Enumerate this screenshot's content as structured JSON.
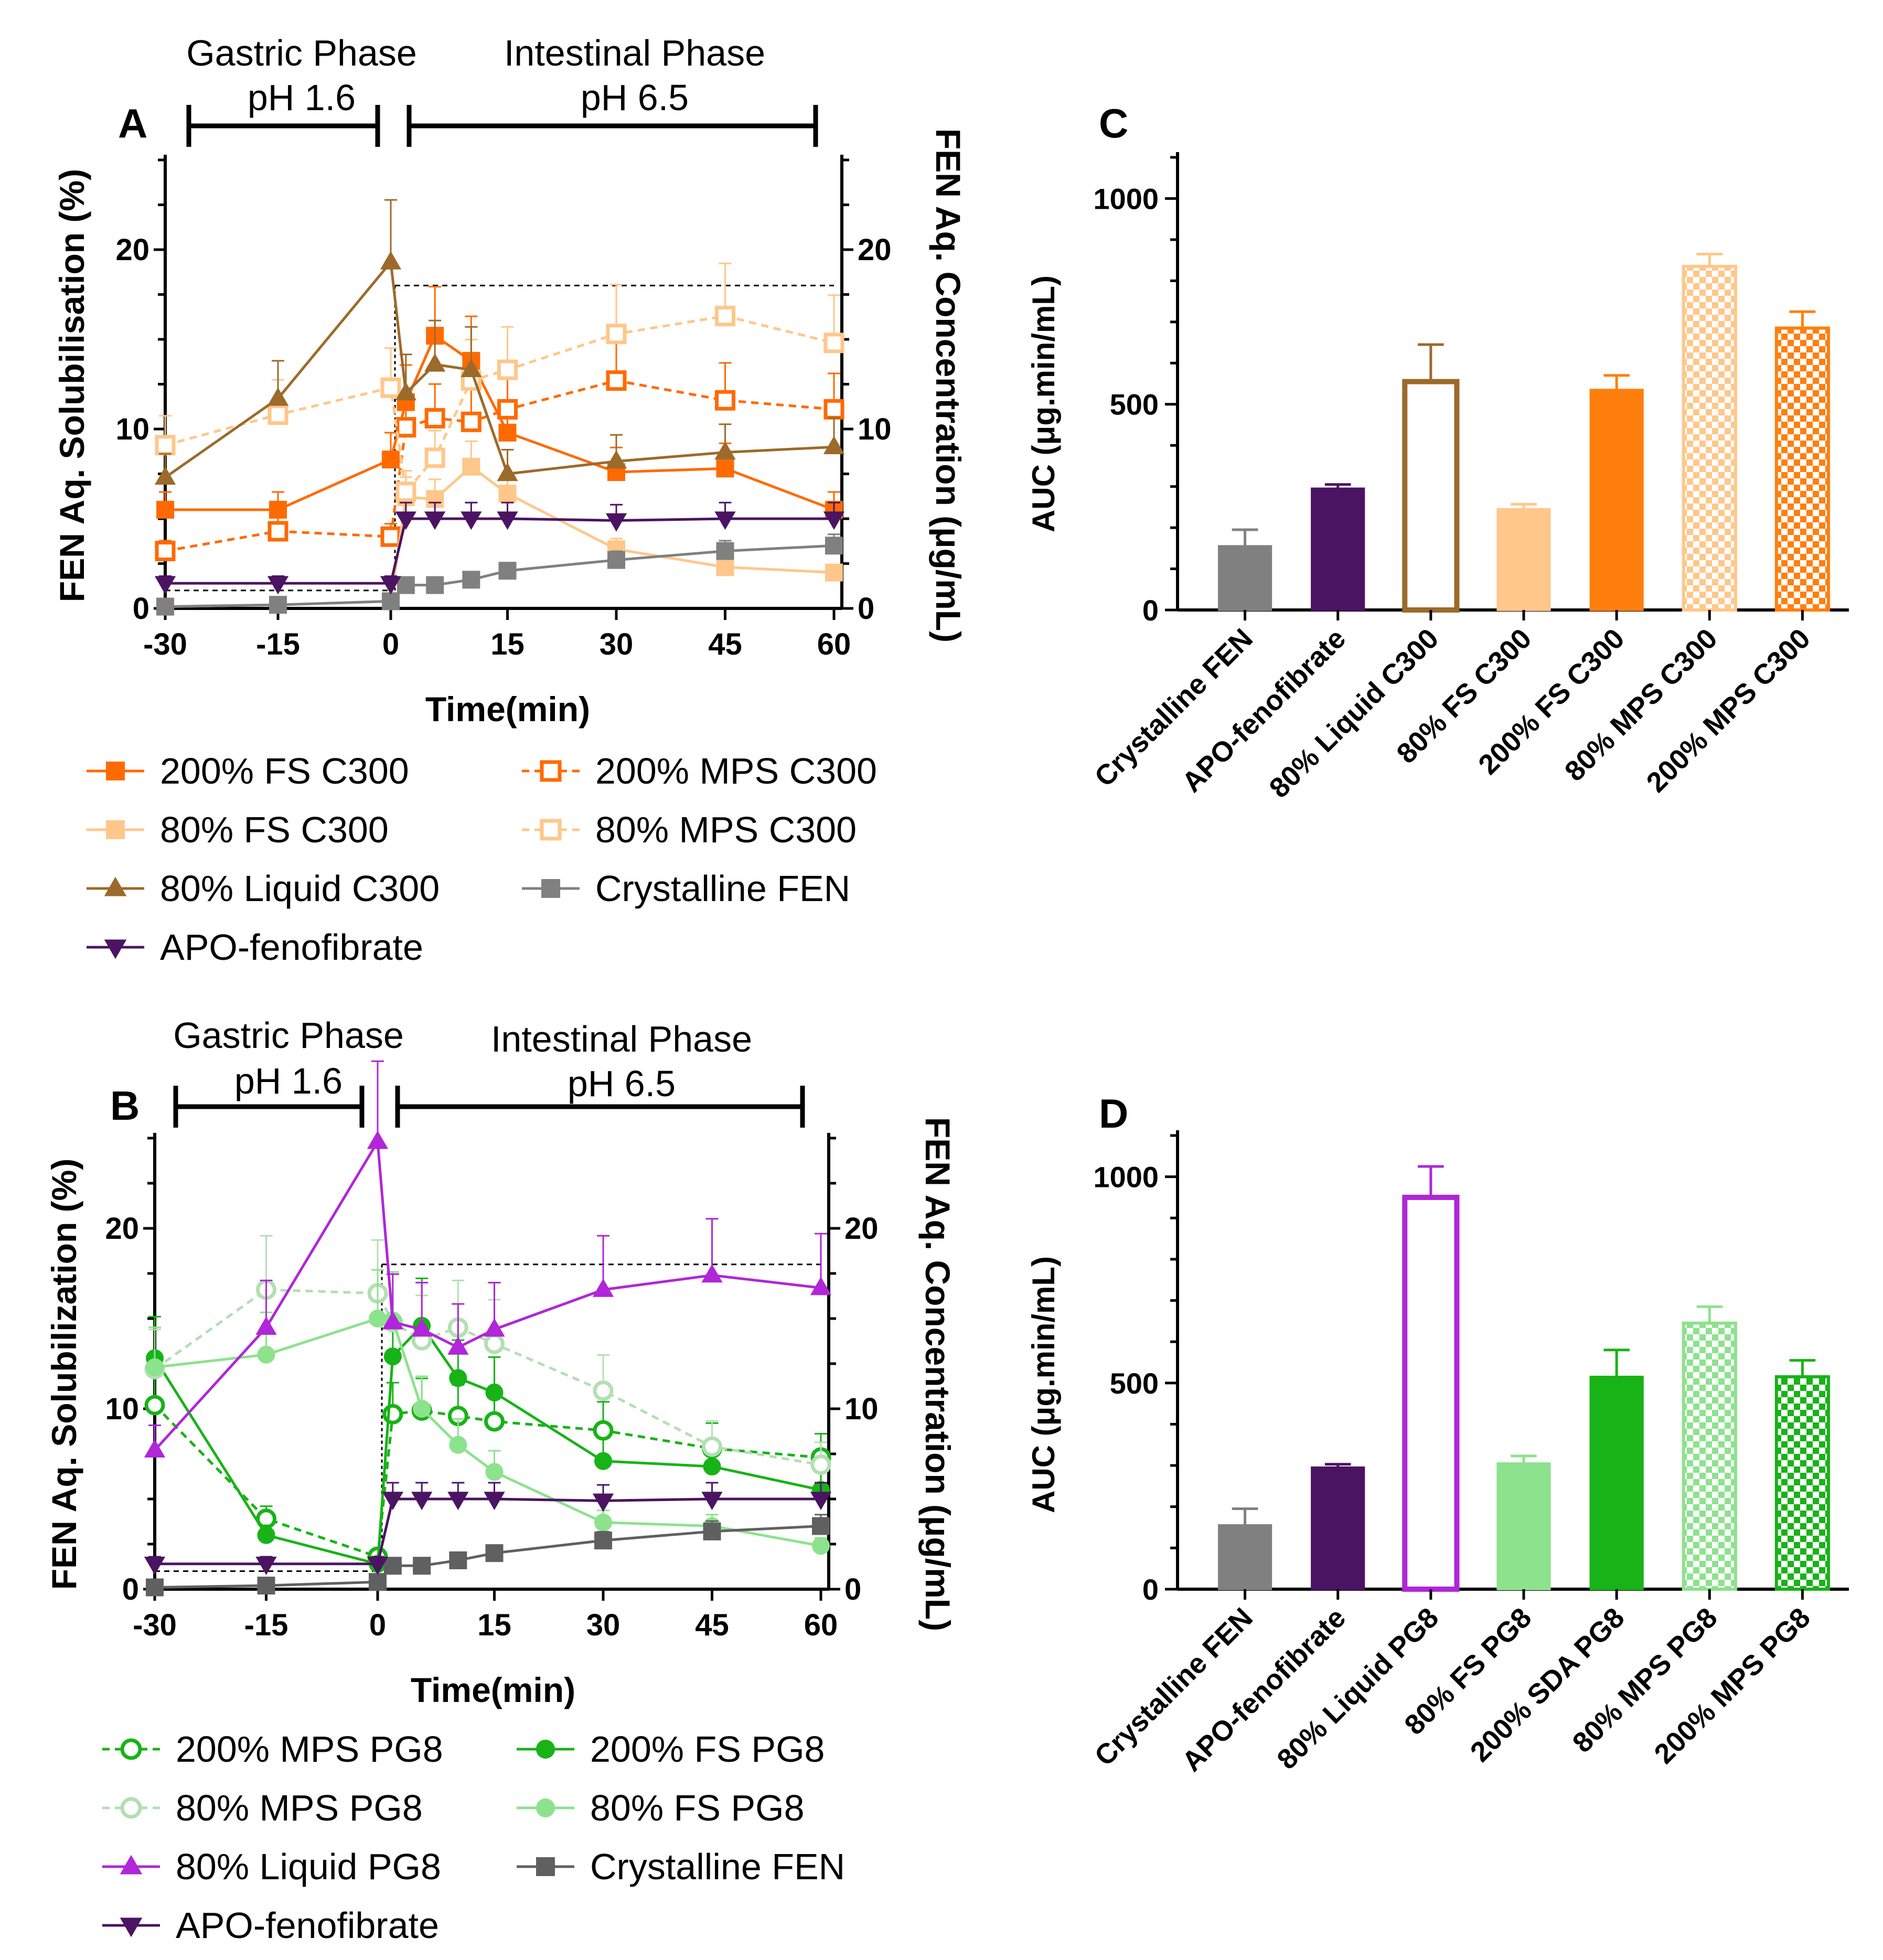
{
  "chart_data": [
    {
      "panel": "A",
      "type": "line",
      "xlabel": "Time(min)",
      "ylabel": "FEN Aq. Solubilisation (%)",
      "y2label": "FEN Aq. Concentration (μg/mL)",
      "xticks": [
        -30,
        -15,
        0,
        15,
        30,
        45,
        60
      ],
      "yticks": [
        0,
        10,
        20
      ],
      "y2ticks": [
        0,
        10,
        20
      ],
      "xlim": [
        -30,
        60
      ],
      "ylim": [
        0,
        25
      ],
      "phases": [
        {
          "title": "Gastric Phase",
          "ph": "pH 1.6"
        },
        {
          "title": "Intestinal Phase",
          "ph": "pH 6.5"
        }
      ],
      "series": [
        {
          "name": "200% FS C300",
          "color": "#ff6a00",
          "marker": "square",
          "filled": true,
          "dashed": false,
          "x": [
            -30,
            -15,
            0,
            1,
            5,
            10,
            15,
            30,
            45,
            60
          ],
          "y": [
            5.5,
            5.5,
            8.3,
            11.5,
            15.2,
            13.8,
            9.8,
            7.6,
            7.8,
            5.5
          ]
        },
        {
          "name": "200% MPS C300",
          "color": "#ff6a00",
          "marker": "square",
          "filled": false,
          "dashed": true,
          "x": [
            -30,
            -15,
            0,
            1,
            5,
            10,
            15,
            30,
            45,
            60
          ],
          "y": [
            3.2,
            4.3,
            4.0,
            10.1,
            10.6,
            10.4,
            11.1,
            12.7,
            11.6,
            11.1
          ]
        },
        {
          "name": "80% FS C300",
          "color": "#ffc78a",
          "marker": "square",
          "filled": true,
          "dashed": false,
          "x": [
            -30,
            -15,
            0,
            1,
            5,
            10,
            15,
            30,
            45,
            60
          ],
          "y": [
            0.1,
            0.2,
            0.4,
            6.2,
            6.1,
            7.9,
            6.4,
            3.3,
            2.3,
            2.0
          ]
        },
        {
          "name": "80% MPS C300",
          "color": "#ffc78a",
          "marker": "square",
          "filled": false,
          "dashed": true,
          "x": [
            -30,
            -15,
            0,
            1,
            5,
            10,
            15,
            30,
            45,
            60
          ],
          "y": [
            9.1,
            10.8,
            12.3,
            6.5,
            8.4,
            12.7,
            13.3,
            15.3,
            16.3,
            14.8
          ]
        },
        {
          "name": "80% Liquid C300",
          "color": "#9c6a2a",
          "marker": "triangle-up",
          "filled": true,
          "dashed": false,
          "x": [
            -30,
            -15,
            0,
            1,
            5,
            10,
            15,
            30,
            45,
            60
          ],
          "y": [
            7.3,
            11.7,
            19.3,
            12.0,
            13.6,
            13.3,
            7.5,
            8.2,
            8.7,
            9.0
          ]
        },
        {
          "name": "Crystalline FEN",
          "color": "#808080",
          "marker": "square",
          "filled": true,
          "dashed": false,
          "x": [
            -30,
            -15,
            0,
            1,
            5,
            10,
            15,
            30,
            45,
            60
          ],
          "y": [
            0.1,
            0.2,
            0.4,
            1.3,
            1.3,
            1.6,
            2.1,
            2.7,
            3.2,
            3.5
          ]
        },
        {
          "name": "APO-fenofibrate",
          "color": "#4b1462",
          "marker": "triangle-down",
          "filled": true,
          "dashed": false,
          "x": [
            -30,
            -15,
            0,
            1,
            5,
            10,
            15,
            30,
            45,
            60
          ],
          "y": [
            1.4,
            1.4,
            1.4,
            5.0,
            5.0,
            5.0,
            5.0,
            4.9,
            5.0,
            5.0
          ]
        }
      ]
    },
    {
      "panel": "B",
      "type": "line",
      "xlabel": "Time(min)",
      "ylabel": "FEN Aq. Solubilization (%)",
      "y2label": "FEN Aq. Concentration (μg/mL)",
      "xticks": [
        -30,
        -15,
        0,
        15,
        30,
        45,
        60
      ],
      "yticks": [
        0,
        10,
        20
      ],
      "y2ticks": [
        0,
        10,
        20
      ],
      "xlim": [
        -30,
        60
      ],
      "ylim": [
        0,
        25
      ],
      "phases": [
        {
          "title": "Gastric Phase",
          "ph": "pH 1.6"
        },
        {
          "title": "Intestinal Phase",
          "ph": "pH 6.5"
        }
      ],
      "series": [
        {
          "name": "200% MPS PG8",
          "color": "#17b317",
          "marker": "circle",
          "filled": false,
          "dashed": true,
          "x": [
            -30,
            -15,
            0,
            1,
            5,
            10,
            15,
            30,
            45,
            60
          ],
          "y": [
            10.2,
            3.9,
            1.8,
            9.7,
            9.9,
            9.6,
            9.3,
            8.8,
            7.8,
            7.3
          ]
        },
        {
          "name": "200% FS PG8",
          "color": "#17b317",
          "marker": "circle",
          "filled": true,
          "dashed": false,
          "x": [
            -30,
            -15,
            0,
            1,
            5,
            10,
            15,
            30,
            45,
            60
          ],
          "y": [
            12.8,
            3.0,
            1.4,
            12.9,
            14.6,
            11.7,
            10.9,
            7.1,
            6.8,
            5.5
          ]
        },
        {
          "name": "80% MPS PG8",
          "color": "#b3dfb3",
          "marker": "circle",
          "filled": false,
          "dashed": true,
          "x": [
            -30,
            -15,
            0,
            1,
            5,
            10,
            15,
            30,
            45,
            60
          ],
          "y": [
            12.2,
            16.6,
            16.4,
            14.8,
            13.8,
            14.5,
            13.6,
            11.0,
            7.9,
            6.9
          ]
        },
        {
          "name": "80% FS PG8",
          "color": "#8de28d",
          "marker": "circle",
          "filled": true,
          "dashed": false,
          "x": [
            -30,
            -15,
            0,
            1,
            5,
            10,
            15,
            30,
            45,
            60
          ],
          "y": [
            12.3,
            13.0,
            15.0,
            14.9,
            10.0,
            8.0,
            6.5,
            3.7,
            3.5,
            2.4
          ]
        },
        {
          "name": "80% Liquid PG8",
          "color": "#b026d8",
          "marker": "triangle-up",
          "filled": true,
          "dashed": false,
          "x": [
            -30,
            -15,
            0,
            1,
            5,
            10,
            15,
            30,
            45,
            60
          ],
          "y": [
            7.7,
            14.5,
            24.8,
            14.8,
            14.4,
            13.4,
            14.4,
            16.6,
            17.4,
            16.7
          ]
        },
        {
          "name": "Crystalline FEN",
          "color": "#606060",
          "marker": "square",
          "filled": true,
          "dashed": false,
          "x": [
            -30,
            -15,
            0,
            1,
            5,
            10,
            15,
            30,
            45,
            60
          ],
          "y": [
            0.1,
            0.2,
            0.4,
            1.3,
            1.3,
            1.6,
            2.0,
            2.7,
            3.2,
            3.5
          ]
        },
        {
          "name": "APO-fenofibrate",
          "color": "#4b1462",
          "marker": "triangle-down",
          "filled": true,
          "dashed": false,
          "x": [
            -30,
            -15,
            0,
            1,
            5,
            10,
            15,
            30,
            45,
            60
          ],
          "y": [
            1.4,
            1.4,
            1.4,
            5.0,
            5.0,
            5.0,
            5.0,
            4.9,
            5.0,
            5.0
          ]
        }
      ]
    },
    {
      "panel": "C",
      "type": "bar",
      "ylabel": "AUC (μg.min/mL)",
      "yticks": [
        0,
        500,
        1000
      ],
      "ylim": [
        0,
        1100
      ],
      "categories": [
        "Crystalline FEN",
        "APO-fenofibrate",
        "80% Liquid C300",
        "80% FS C300",
        "200% FS C300",
        "80% MPS C300",
        "200% MPS C300"
      ],
      "values": [
        155,
        295,
        555,
        245,
        535,
        835,
        685
      ],
      "errors": [
        40,
        10,
        90,
        12,
        35,
        30,
        40
      ],
      "colors": [
        "#808080",
        "#4b1462",
        "#9c6a2a",
        "#ffc78a",
        "#ff7f0e",
        "#ffc78a",
        "#ff7f0e"
      ],
      "styles": [
        "solid",
        "solid",
        "hollow",
        "solid",
        "solid",
        "checker",
        "checker"
      ]
    },
    {
      "panel": "D",
      "type": "bar",
      "ylabel": "AUC (μg.min/mL)",
      "yticks": [
        0,
        500,
        1000
      ],
      "ylim": [
        0,
        1100
      ],
      "categories": [
        "Crystalline FEN",
        "APO-fenofibrate",
        "80% Liquid PG8",
        "80% FS PG8",
        "200% SDA PG8",
        "80% MPS PG8",
        "200% MPS PG8"
      ],
      "values": [
        155,
        295,
        950,
        305,
        515,
        645,
        515
      ],
      "errors": [
        40,
        8,
        75,
        18,
        65,
        40,
        40
      ],
      "colors": [
        "#808080",
        "#4b1462",
        "#b026d8",
        "#8de28d",
        "#17b317",
        "#8de28d",
        "#17b317"
      ],
      "styles": [
        "solid",
        "solid",
        "hollow",
        "solid",
        "solid",
        "checker",
        "checker"
      ]
    }
  ]
}
